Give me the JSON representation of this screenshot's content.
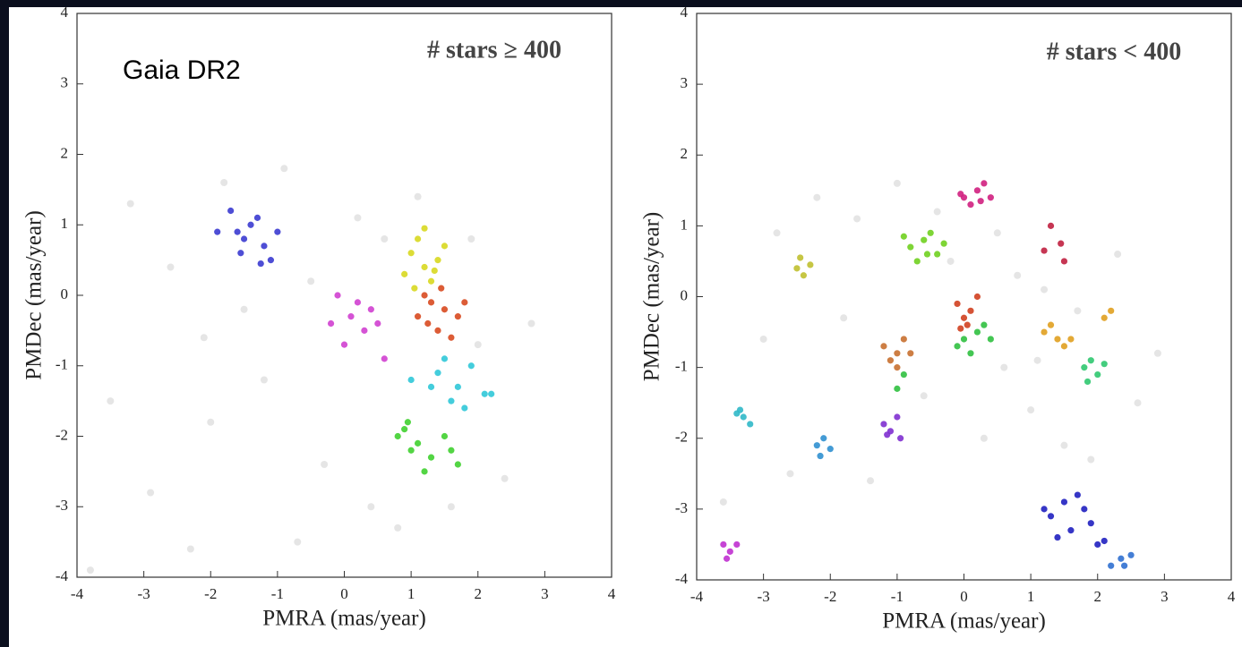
{
  "chart_data": [
    {
      "type": "scatter",
      "annotations": [
        "# stars ≥ 400",
        "Gaia DR2"
      ],
      "xlabel": "PMRA (mas/year)",
      "ylabel": "PMDec (mas/year)",
      "xlim": [
        -4,
        4
      ],
      "ylim": [
        -4,
        4
      ],
      "xticks": [
        -4,
        -3,
        -2,
        -1,
        0,
        1,
        2,
        3,
        4
      ],
      "yticks": [
        -4,
        -3,
        -2,
        -1,
        0,
        1,
        2,
        3,
        4
      ],
      "series": [
        {
          "color": "#d4d4d4",
          "x": [
            -3.2,
            -2.6,
            -2.1,
            -1.8,
            -0.9,
            -0.5,
            -3.5,
            -2.9,
            -1.2,
            -0.3,
            0.4,
            0.8,
            1.6,
            2.4,
            2.8,
            -2.3,
            -1.5,
            0.6,
            1.1,
            2.0,
            -3.8,
            -0.7,
            1.9,
            0.2,
            -2.0
          ],
          "values": [
            1.3,
            0.4,
            -0.6,
            1.6,
            1.8,
            0.2,
            -1.5,
            -2.8,
            -1.2,
            -2.4,
            -3.0,
            -3.3,
            -3.0,
            -2.6,
            -0.4,
            -3.6,
            -0.2,
            0.8,
            1.4,
            -0.7,
            -3.9,
            -3.5,
            0.8,
            1.1,
            -1.8
          ]
        },
        {
          "color": "#3b3bd0",
          "x": [
            -1.6,
            -1.4,
            -1.2,
            -1.7,
            -1.5,
            -1.1,
            -1.3,
            -1.9,
            -1.0,
            -1.55,
            -1.25
          ],
          "values": [
            0.9,
            1.0,
            0.7,
            1.2,
            0.8,
            0.5,
            1.1,
            0.9,
            0.9,
            0.6,
            0.45
          ]
        },
        {
          "color": "#d8d820",
          "x": [
            1.0,
            1.2,
            1.4,
            1.1,
            1.3,
            0.9,
            1.5,
            1.2,
            1.05,
            1.35
          ],
          "values": [
            0.6,
            0.4,
            0.5,
            0.8,
            0.2,
            0.3,
            0.7,
            0.95,
            0.1,
            0.35
          ]
        },
        {
          "color": "#d84a20",
          "x": [
            1.2,
            1.5,
            1.4,
            1.7,
            1.3,
            1.6,
            1.1,
            1.8,
            1.45,
            1.25
          ],
          "values": [
            0.0,
            -0.2,
            -0.5,
            -0.3,
            -0.1,
            -0.6,
            -0.3,
            -0.1,
            0.1,
            -0.4
          ]
        },
        {
          "color": "#d040d0",
          "x": [
            -0.1,
            0.1,
            0.3,
            0.0,
            0.5,
            0.2,
            0.6,
            -0.2,
            0.4
          ],
          "values": [
            0.0,
            -0.3,
            -0.5,
            -0.7,
            -0.4,
            -0.1,
            -0.9,
            -0.4,
            -0.2
          ]
        },
        {
          "color": "#30c8d8",
          "x": [
            1.4,
            1.7,
            1.9,
            1.6,
            1.3,
            2.1,
            1.8,
            1.5,
            2.2,
            1.0
          ],
          "values": [
            -1.1,
            -1.3,
            -1.0,
            -1.5,
            -1.3,
            -1.4,
            -1.6,
            -0.9,
            -1.4,
            -1.2
          ]
        },
        {
          "color": "#40d030",
          "x": [
            0.9,
            1.1,
            1.3,
            1.0,
            1.5,
            1.7,
            0.8,
            1.2,
            1.6,
            0.95
          ],
          "values": [
            -1.9,
            -2.1,
            -2.3,
            -2.2,
            -2.0,
            -2.4,
            -2.0,
            -2.5,
            -2.2,
            -1.8
          ]
        }
      ]
    },
    {
      "type": "scatter",
      "annotations": [
        "# stars < 400"
      ],
      "xlabel": "PMRA (mas/year)",
      "ylabel": "PMDec (mas/year)",
      "xlim": [
        -4,
        4
      ],
      "ylim": [
        -4,
        4
      ],
      "xticks": [
        -4,
        -3,
        -2,
        -1,
        0,
        1,
        2,
        3,
        4
      ],
      "yticks": [
        -4,
        -3,
        -2,
        -1,
        0,
        1,
        2,
        3,
        4
      ],
      "series": [
        {
          "color": "#d4d4d4",
          "x": [
            -2.8,
            -2.2,
            -1.6,
            -1.0,
            -0.4,
            0.8,
            1.2,
            1.7,
            2.3,
            -3.0,
            -1.8,
            -0.6,
            0.6,
            1.0,
            1.5,
            2.6,
            -2.6,
            -1.4,
            0.3,
            1.9,
            -0.2,
            1.1,
            -3.6,
            2.9,
            0.5
          ],
          "values": [
            0.9,
            1.4,
            1.1,
            1.6,
            1.2,
            0.3,
            0.1,
            -0.2,
            0.6,
            -0.6,
            -0.3,
            -1.4,
            -1.0,
            -1.6,
            -2.1,
            -1.5,
            -2.5,
            -2.6,
            -2.0,
            -2.3,
            0.5,
            -0.9,
            -2.9,
            -0.8,
            0.9
          ]
        },
        {
          "color": "#d02080",
          "x": [
            0.0,
            0.2,
            0.3,
            0.4,
            0.1,
            -0.05,
            0.25
          ],
          "values": [
            1.4,
            1.5,
            1.6,
            1.4,
            1.3,
            1.45,
            1.35
          ]
        },
        {
          "color": "#c02040",
          "x": [
            1.2,
            1.45,
            1.3,
            1.5
          ],
          "values": [
            0.65,
            0.75,
            1.0,
            0.5
          ]
        },
        {
          "color": "#70d020",
          "x": [
            -0.8,
            -0.6,
            -0.4,
            -0.7,
            -0.5,
            -0.3,
            -0.9,
            -0.55
          ],
          "values": [
            0.7,
            0.8,
            0.6,
            0.5,
            0.9,
            0.75,
            0.85,
            0.6
          ]
        },
        {
          "color": "#c0c030",
          "x": [
            -2.5,
            -2.4,
            -2.3,
            -2.45
          ],
          "values": [
            0.4,
            0.3,
            0.45,
            0.55
          ]
        },
        {
          "color": "#d04020",
          "x": [
            -0.1,
            0.0,
            0.1,
            -0.05,
            0.2,
            0.05
          ],
          "values": [
            -0.1,
            -0.3,
            -0.2,
            -0.45,
            0.0,
            -0.4
          ]
        },
        {
          "color": "#c87030",
          "x": [
            -1.2,
            -1.0,
            -0.9,
            -1.1,
            -0.8,
            -1.0
          ],
          "values": [
            -0.7,
            -0.8,
            -0.6,
            -0.9,
            -0.8,
            -1.0
          ]
        },
        {
          "color": "#30c040",
          "x": [
            0.0,
            0.2,
            0.4,
            0.1,
            0.3,
            -0.1,
            -0.9,
            -1.0
          ],
          "values": [
            -0.6,
            -0.5,
            -0.6,
            -0.8,
            -0.4,
            -0.7,
            -1.1,
            -1.3
          ]
        },
        {
          "color": "#e0a020",
          "x": [
            1.2,
            1.4,
            1.5,
            1.3,
            1.6,
            2.1,
            2.2
          ],
          "values": [
            -0.5,
            -0.6,
            -0.7,
            -0.4,
            -0.6,
            -0.3,
            -0.2
          ]
        },
        {
          "color": "#30c870",
          "x": [
            1.8,
            1.9,
            2.0,
            2.1,
            1.85
          ],
          "values": [
            -1.0,
            -0.9,
            -1.1,
            -0.95,
            -1.2
          ]
        },
        {
          "color": "#30b8c8",
          "x": [
            -3.4,
            -3.3,
            -3.2,
            -3.35
          ],
          "values": [
            -1.65,
            -1.7,
            -1.8,
            -1.6
          ]
        },
        {
          "color": "#3090d0",
          "x": [
            -2.2,
            -2.1,
            -2.0,
            -2.15
          ],
          "values": [
            -2.1,
            -2.0,
            -2.15,
            -2.25
          ]
        },
        {
          "color": "#8030d0",
          "x": [
            -1.2,
            -1.0,
            -1.1,
            -0.95,
            -1.15
          ],
          "values": [
            -1.8,
            -1.7,
            -1.9,
            -2.0,
            -1.95
          ]
        },
        {
          "color": "#c030d0",
          "x": [
            -3.6,
            -3.5,
            -3.4,
            -3.55
          ],
          "values": [
            -3.5,
            -3.6,
            -3.5,
            -3.7
          ]
        },
        {
          "color": "#2020c0",
          "x": [
            1.2,
            1.5,
            1.7,
            1.6,
            1.9,
            2.0,
            1.4,
            1.8,
            2.1,
            1.3
          ],
          "values": [
            -3.0,
            -2.9,
            -2.8,
            -3.3,
            -3.2,
            -3.5,
            -3.4,
            -3.0,
            -3.45,
            -3.1
          ]
        },
        {
          "color": "#3070d0",
          "x": [
            2.2,
            2.35,
            2.5,
            2.4
          ],
          "values": [
            -3.8,
            -3.7,
            -3.65,
            -3.8
          ]
        }
      ]
    }
  ]
}
